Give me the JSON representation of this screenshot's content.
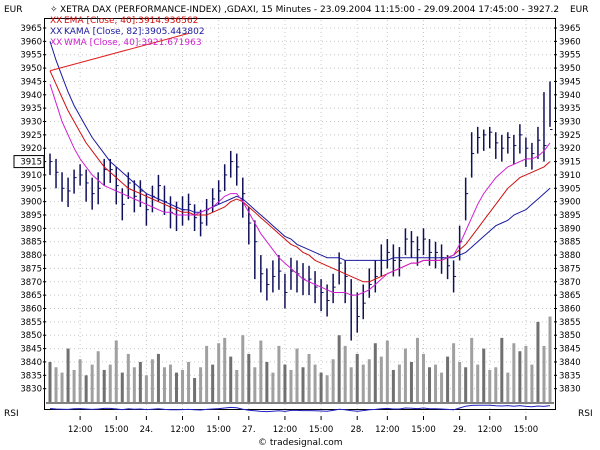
{
  "header": {
    "currency_left": "EUR",
    "currency_right": "EUR",
    "title": "XETRA DAX (PERFORMANCE-INDEX) ,GDAXI, 15 Minutes - 23.09.2004 11:15:00 - 29.09.2004 17:45:00 - 3927.2"
  },
  "legend": [
    {
      "label": "EMA [Close, 40]:3914.936562",
      "color": "#d01010"
    },
    {
      "label": "KAMA [Close, 82]:3905.443802",
      "color": "#1a1aa0"
    },
    {
      "label": "WMA [Close, 40]:3921.671963",
      "color": "#d020d0"
    }
  ],
  "footer": {
    "indicator_label": "RSI",
    "indicator_label_right": "RSI",
    "watermark": "© tradesignal.com"
  },
  "colors": {
    "price": "#10105a",
    "volume": "#a0a0a0",
    "volume_dark": "#707070",
    "trendline": "#e02020",
    "rsi": "#2020c0",
    "grid": "#c8c8c8"
  },
  "chart_data": {
    "type": "line",
    "ylim": [
      3825,
      3968
    ],
    "y_ticks": [
      3830,
      3835,
      3840,
      3845,
      3850,
      3855,
      3860,
      3865,
      3870,
      3875,
      3880,
      3885,
      3890,
      3895,
      3900,
      3905,
      3910,
      3915,
      3920,
      3925,
      3930,
      3935,
      3940,
      3945,
      3950,
      3955,
      3960,
      3965
    ],
    "x_ticks": [
      "12:00",
      "15:00",
      "24.",
      "12:00",
      "15:00",
      "27.",
      "12:00",
      "15:00",
      "28.",
      "12:00",
      "15:00",
      "29.",
      "12:00",
      "15:00"
    ],
    "price_label": 3915,
    "grid": true,
    "close": [
      3915,
      3911,
      3905,
      3904,
      3909,
      3910,
      3907,
      3903,
      3905,
      3912,
      3912,
      3906,
      3899,
      3907,
      3902,
      3904,
      3897,
      3902,
      3906,
      3900,
      3896,
      3895,
      3897,
      3899,
      3894,
      3892,
      3897,
      3901,
      3904,
      3910,
      3915,
      3913,
      3903,
      3892,
      3885,
      3873,
      3869,
      3872,
      3874,
      3866,
      3874,
      3873,
      3871,
      3871,
      3868,
      3866,
      3863,
      3868,
      3877,
      3872,
      3865,
      3857,
      3862,
      3869,
      3872,
      3878,
      3881,
      3878,
      3878,
      3886,
      3885,
      3882,
      3886,
      3881,
      3881,
      3879,
      3876,
      3872,
      3885,
      3903,
      3918,
      3924,
      3925,
      3926,
      3922,
      3920,
      3924,
      3921,
      3925,
      3920,
      3918,
      3923,
      3921,
      3927
    ],
    "high": [
      3918,
      3916,
      3911,
      3909,
      3912,
      3914,
      3912,
      3909,
      3911,
      3916,
      3916,
      3913,
      3905,
      3911,
      3908,
      3908,
      3903,
      3906,
      3910,
      3906,
      3902,
      3900,
      3902,
      3903,
      3899,
      3897,
      3901,
      3905,
      3908,
      3914,
      3919,
      3918,
      3909,
      3898,
      3893,
      3880,
      3875,
      3878,
      3880,
      3873,
      3879,
      3878,
      3877,
      3876,
      3874,
      3871,
      3869,
      3873,
      3881,
      3878,
      3871,
      3866,
      3869,
      3875,
      3878,
      3884,
      3886,
      3884,
      3883,
      3890,
      3889,
      3887,
      3890,
      3886,
      3885,
      3884,
      3880,
      3878,
      3891,
      3909,
      3926,
      3928,
      3927,
      3928,
      3926,
      3925,
      3926,
      3925,
      3929,
      3924,
      3922,
      3928,
      3941,
      3945
    ],
    "low": [
      3910,
      3905,
      3900,
      3898,
      3903,
      3906,
      3900,
      3897,
      3899,
      3906,
      3907,
      3899,
      3893,
      3901,
      3896,
      3898,
      3891,
      3896,
      3900,
      3895,
      3890,
      3889,
      3891,
      3893,
      3889,
      3887,
      3891,
      3896,
      3899,
      3904,
      3909,
      3906,
      3894,
      3884,
      3871,
      3866,
      3863,
      3866,
      3867,
      3860,
      3867,
      3866,
      3865,
      3865,
      3862,
      3859,
      3857,
      3862,
      3869,
      3862,
      3848,
      3851,
      3856,
      3864,
      3866,
      3872,
      3875,
      3872,
      3872,
      3880,
      3879,
      3876,
      3880,
      3876,
      3875,
      3873,
      3871,
      3866,
      3878,
      3893,
      3909,
      3918,
      3919,
      3920,
      3916,
      3915,
      3918,
      3914,
      3918,
      3913,
      3912,
      3916,
      3915,
      3928
    ],
    "ema_40": [
      3949,
      3944,
      3939,
      3934,
      3930,
      3926,
      3922,
      3919,
      3916,
      3913,
      3911,
      3909,
      3907,
      3905,
      3904,
      3903,
      3902,
      3901,
      3900,
      3899,
      3898,
      3897,
      3896,
      3896,
      3895,
      3895,
      3895,
      3896,
      3897,
      3898,
      3900,
      3901,
      3900,
      3898,
      3896,
      3894,
      3892,
      3890,
      3888,
      3886,
      3884,
      3883,
      3881,
      3880,
      3878,
      3877,
      3876,
      3875,
      3874,
      3873,
      3872,
      3871,
      3870,
      3870,
      3871,
      3872,
      3873,
      3874,
      3875,
      3876,
      3877,
      3877,
      3878,
      3878,
      3878,
      3878,
      3879,
      3880,
      3882,
      3884,
      3887,
      3890,
      3893,
      3896,
      3899,
      3902,
      3905,
      3907,
      3909,
      3910,
      3911,
      3912,
      3913,
      3915
    ],
    "kama_82": [
      3960,
      3953,
      3947,
      3941,
      3936,
      3932,
      3928,
      3924,
      3921,
      3918,
      3915,
      3913,
      3911,
      3909,
      3907,
      3905,
      3903,
      3902,
      3901,
      3900,
      3899,
      3898,
      3897,
      3897,
      3896,
      3896,
      3897,
      3898,
      3899,
      3900,
      3901,
      3902,
      3901,
      3899,
      3897,
      3895,
      3893,
      3891,
      3889,
      3887,
      3886,
      3884,
      3883,
      3882,
      3881,
      3880,
      3879,
      3879,
      3879,
      3878,
      3878,
      3878,
      3878,
      3878,
      3878,
      3878,
      3878,
      3879,
      3879,
      3879,
      3879,
      3879,
      3879,
      3879,
      3879,
      3879,
      3879,
      3879,
      3880,
      3881,
      3883,
      3885,
      3887,
      3889,
      3891,
      3892,
      3893,
      3895,
      3896,
      3897,
      3899,
      3901,
      3903,
      3905
    ],
    "wma_40": [
      3944,
      3937,
      3930,
      3925,
      3920,
      3916,
      3913,
      3910,
      3908,
      3906,
      3905,
      3904,
      3903,
      3902,
      3901,
      3900,
      3899,
      3898,
      3897,
      3896,
      3896,
      3895,
      3895,
      3895,
      3895,
      3896,
      3897,
      3898,
      3900,
      3902,
      3903,
      3903,
      3900,
      3896,
      3892,
      3888,
      3885,
      3882,
      3879,
      3877,
      3875,
      3873,
      3871,
      3870,
      3869,
      3868,
      3867,
      3866,
      3866,
      3866,
      3865,
      3865,
      3866,
      3867,
      3869,
      3871,
      3873,
      3874,
      3875,
      3876,
      3877,
      3877,
      3878,
      3878,
      3878,
      3878,
      3879,
      3880,
      3884,
      3889,
      3894,
      3899,
      3903,
      3906,
      3909,
      3911,
      3913,
      3914,
      3915,
      3916,
      3916,
      3917,
      3919,
      3922
    ],
    "volume": [
      3840,
      3838,
      3836,
      3845,
      3837,
      3841,
      3835,
      3839,
      3844,
      3837,
      3839,
      3848,
      3836,
      3843,
      3838,
      3840,
      3835,
      3841,
      3843,
      3838,
      3839,
      3836,
      3837,
      3840,
      3834,
      3838,
      3846,
      3839,
      3847,
      3849,
      3842,
      3837,
      3850,
      3843,
      3838,
      3848,
      3840,
      3836,
      3846,
      3839,
      3837,
      3845,
      3838,
      3843,
      3839,
      3836,
      3835,
      3841,
      3850,
      3846,
      3838,
      3843,
      3839,
      3841,
      3847,
      3842,
      3848,
      3837,
      3839,
      3845,
      3840,
      3849,
      3843,
      3838,
      3839,
      3836,
      3842,
      3847,
      3840,
      3838,
      3849,
      3839,
      3845,
      3837,
      3838,
      3849,
      3836,
      3847,
      3844,
      3846,
      3839,
      3855,
      3846,
      3857
    ],
    "rsi": [
      0.55,
      0.5,
      0.48,
      0.46,
      0.52,
      0.54,
      0.5,
      0.46,
      0.5,
      0.56,
      0.56,
      0.5,
      0.44,
      0.52,
      0.48,
      0.5,
      0.44,
      0.48,
      0.52,
      0.46,
      0.42,
      0.42,
      0.44,
      0.46,
      0.42,
      0.4,
      0.46,
      0.5,
      0.54,
      0.6,
      0.66,
      0.62,
      0.48,
      0.38,
      0.32,
      0.26,
      0.24,
      0.28,
      0.32,
      0.26,
      0.36,
      0.36,
      0.34,
      0.34,
      0.32,
      0.3,
      0.28,
      0.36,
      0.48,
      0.42,
      0.34,
      0.28,
      0.34,
      0.42,
      0.46,
      0.52,
      0.56,
      0.5,
      0.5,
      0.6,
      0.58,
      0.54,
      0.6,
      0.52,
      0.52,
      0.5,
      0.46,
      0.42,
      0.6,
      0.78,
      0.86,
      0.88,
      0.88,
      0.88,
      0.82,
      0.8,
      0.84,
      0.78,
      0.84,
      0.76,
      0.72,
      0.8,
      0.76,
      0.84
    ],
    "trendline": [
      [
        0,
        3949
      ],
      [
        23,
        3963
      ]
    ]
  }
}
